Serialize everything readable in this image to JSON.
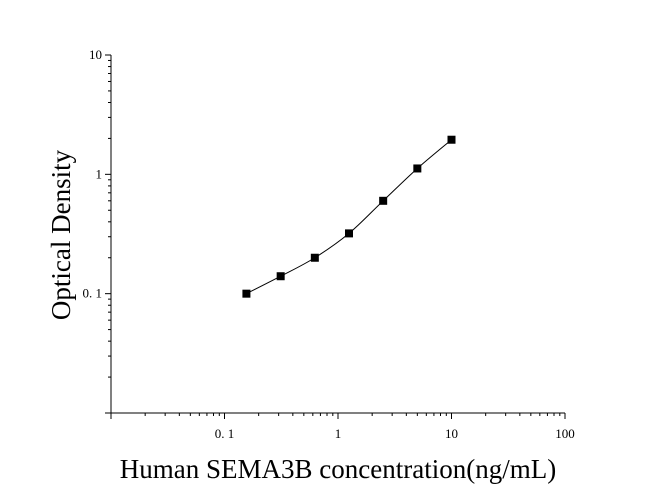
{
  "chart_data": {
    "type": "scatter",
    "title": "",
    "xlabel": "Human SEMA3B concentration(ng/mL)",
    "ylabel": "Optical Density",
    "x_scale": "log",
    "y_scale": "log",
    "xlim": [
      0.01,
      100
    ],
    "ylim": [
      0.01,
      10
    ],
    "x_ticks": [
      {
        "value": 0.1,
        "label": "0. 1"
      },
      {
        "value": 1,
        "label": "1"
      },
      {
        "value": 10,
        "label": "10"
      },
      {
        "value": 100,
        "label": "100"
      }
    ],
    "y_ticks": [
      {
        "value": 0.1,
        "label": "0. 1"
      },
      {
        "value": 1,
        "label": "1"
      },
      {
        "value": 10,
        "label": "10"
      }
    ],
    "grid": false,
    "legend": "none",
    "series": [
      {
        "marker": "square",
        "color": "#000000",
        "fit_line": true,
        "points": [
          {
            "x": 0.156,
            "y": 0.1
          },
          {
            "x": 0.3125,
            "y": 0.14
          },
          {
            "x": 0.625,
            "y": 0.2
          },
          {
            "x": 1.25,
            "y": 0.32
          },
          {
            "x": 2.5,
            "y": 0.6
          },
          {
            "x": 5,
            "y": 1.12
          },
          {
            "x": 10,
            "y": 1.95
          }
        ]
      }
    ]
  }
}
